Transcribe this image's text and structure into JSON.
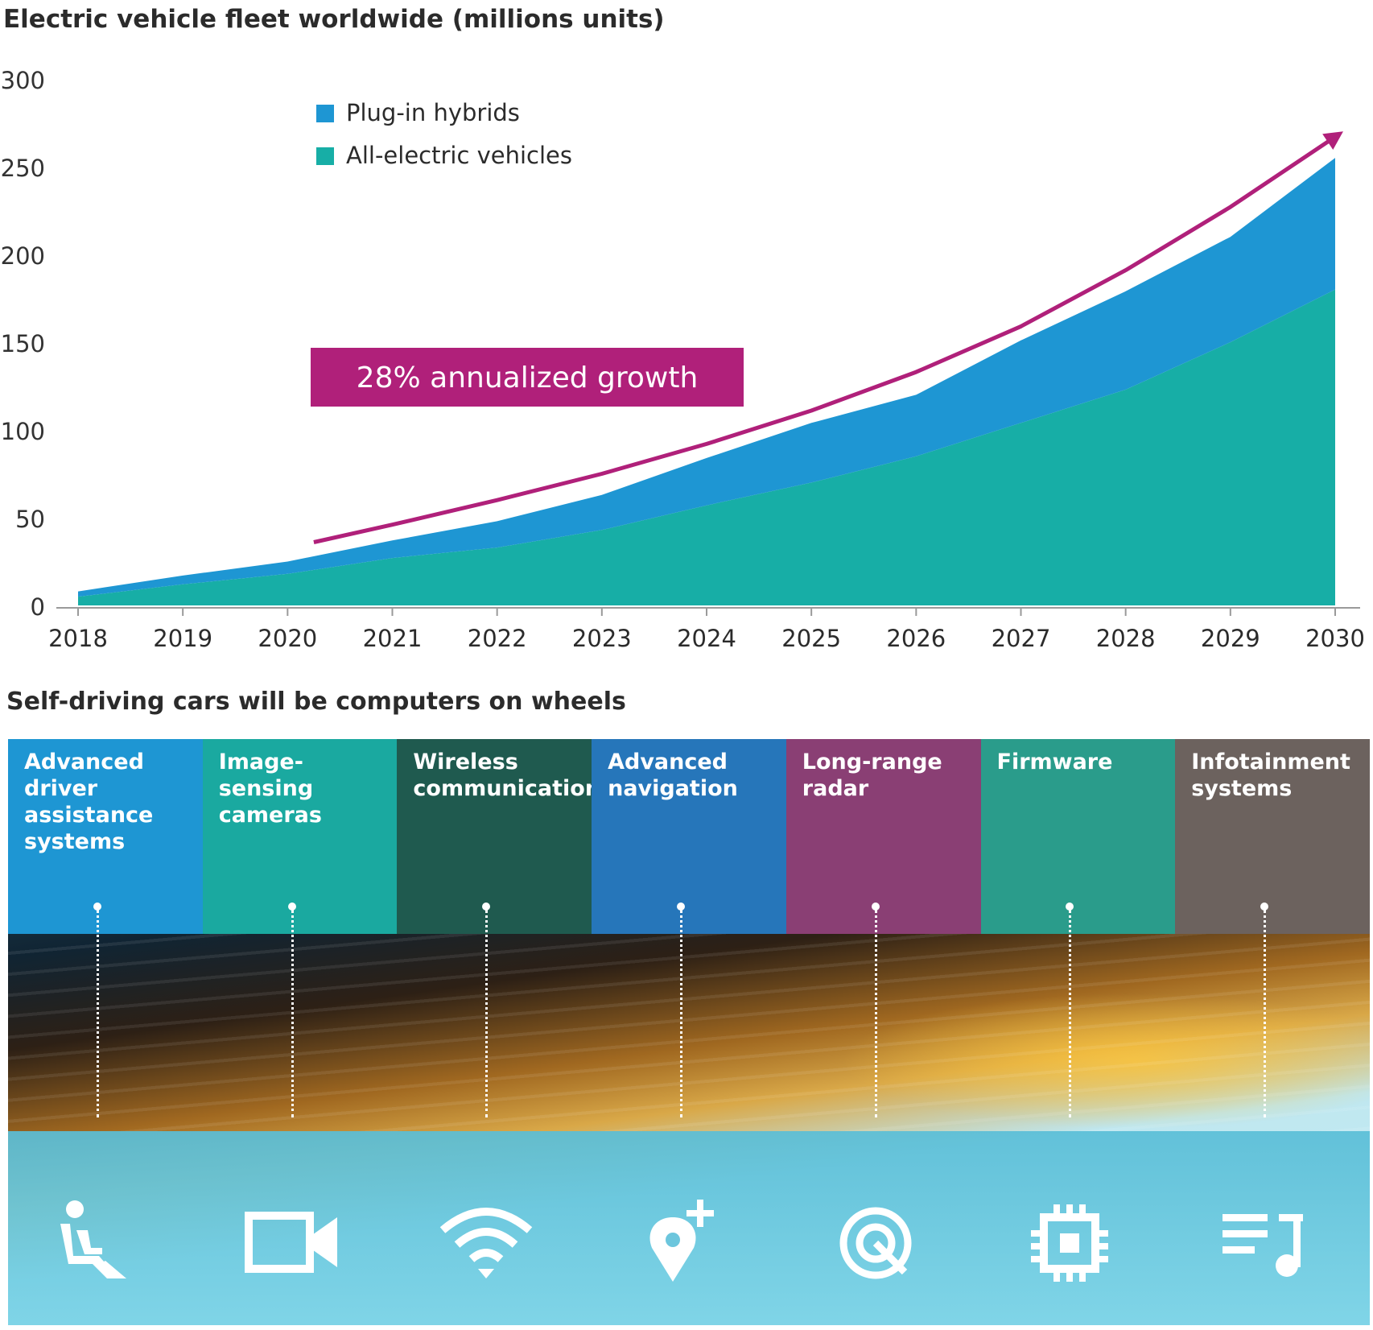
{
  "chart_data": {
    "type": "area",
    "title": "Electric vehicle fleet worldwide (millions units)",
    "x": [
      "2018",
      "2019",
      "2020",
      "2021",
      "2022",
      "2023",
      "2024",
      "2025",
      "2026",
      "2027",
      "2028",
      "2029",
      "2030"
    ],
    "ylim": [
      0,
      300
    ],
    "yticks": [
      "0",
      "50",
      "100",
      "150",
      "200",
      "250",
      "300"
    ],
    "stacked": true,
    "series": [
      {
        "name": "All-electric vehicles",
        "color": "#17aea6",
        "values": [
          5,
          12,
          18,
          27,
          33,
          43,
          57,
          70,
          85,
          104,
          123,
          150,
          180
        ]
      },
      {
        "name": "Plug-in hybrids",
        "color": "#1e96d3",
        "values": [
          3,
          5,
          7,
          10,
          15,
          20,
          27,
          34,
          35,
          47,
          56,
          60,
          75
        ]
      }
    ],
    "trend": {
      "label": "28% annualized growth",
      "color": "#b0207a",
      "x": [
        "2020.25",
        "2021",
        "2022",
        "2023",
        "2024",
        "2025",
        "2026",
        "2027",
        "2028",
        "2029",
        "2030"
      ],
      "y": [
        36,
        46,
        60,
        75,
        92,
        111,
        133,
        159,
        191,
        227,
        267
      ]
    },
    "legend_position": "top-left"
  },
  "section2": {
    "title": "Self-driving cars will be computers on wheels",
    "columns": [
      {
        "label": "Advanced driver assistance systems",
        "color": "#1e96d3",
        "icon": "driver-seat-icon"
      },
      {
        "label": "Image-sensing cameras",
        "color": "#1aa9a0",
        "icon": "video-camera-icon"
      },
      {
        "label": "Wireless communication",
        "color": "#1f5a4f",
        "icon": "wifi-icon"
      },
      {
        "label": "Advanced navigation",
        "color": "#2676ba",
        "icon": "map-pin-plus-icon"
      },
      {
        "label": "Long-range radar",
        "color": "#8a3f74",
        "icon": "radar-icon"
      },
      {
        "label": "Firmware",
        "color": "#2a9c8b",
        "icon": "chip-icon"
      },
      {
        "label": "Infotainment systems",
        "color": "#6c625e",
        "icon": "music-playlist-icon"
      }
    ]
  }
}
